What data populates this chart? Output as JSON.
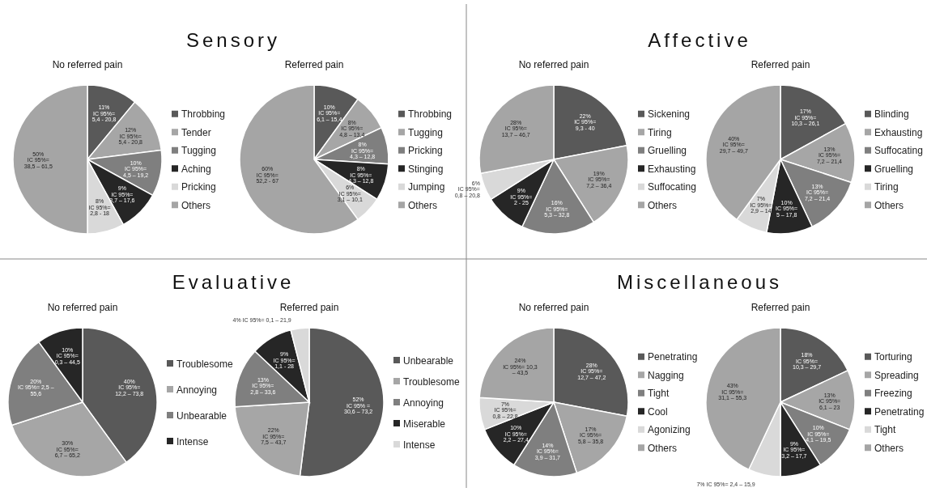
{
  "chart_data": [
    {
      "type": "pie",
      "title": "Sensory",
      "subtitle": "No referred pain",
      "legend": "right",
      "categories": [
        "Throbbing",
        "Tender",
        "Tugging",
        "Aching",
        "Pricking",
        "Others"
      ],
      "values": [
        11,
        12,
        10,
        9,
        8,
        50
      ],
      "colors": [
        "#595959",
        "#a6a6a6",
        "#7f7f7f",
        "#262626",
        "#d9d9d9",
        "#a5a5a5"
      ],
      "value_labels": [
        "11%\nIC 95%=\n5,4 - 20,8",
        "12%\nIC 95%=\n5,4 - 20,8",
        "10%\nIC 95%=\n4,5 – 19,2",
        "9%\nIC 95%=\n3,7 – 17,6",
        "8%\nIC 95%=\n2,8 - 18",
        "50%\nIC 95%=\n38,5 – 61,5"
      ]
    },
    {
      "type": "pie",
      "subtitle": "Referred pain",
      "legend": "right",
      "categories": [
        "Throbbing",
        "Tugging",
        "Pricking",
        "Stinging",
        "Jumping",
        "Others"
      ],
      "values": [
        10,
        8,
        8,
        8,
        6,
        60
      ],
      "colors": [
        "#595959",
        "#a6a6a6",
        "#7f7f7f",
        "#262626",
        "#d9d9d9",
        "#a5a5a5"
      ],
      "value_labels": [
        "10%\nIC 95%=\n6,1 – 15,4",
        "8%\nIC 95%=\n4,8 – 13,4",
        "8%\nIC 95%=\n4,3 – 12,8",
        "8%\nIC 95%=\n4,3 – 12,8",
        "6%\nIC 95%=\n3,1 – 10,1",
        "60%\nIC 95%=\n52,2 - 67"
      ]
    },
    {
      "type": "pie",
      "title": "Affective",
      "subtitle": "No referred pain",
      "legend": "right",
      "categories": [
        "Sickening",
        "Tiring",
        "Gruelling",
        "Exhausting",
        "Suffocating",
        "Others"
      ],
      "values": [
        22,
        19,
        16,
        9,
        6,
        28
      ],
      "colors": [
        "#595959",
        "#a6a6a6",
        "#7f7f7f",
        "#262626",
        "#d9d9d9",
        "#a5a5a5"
      ],
      "value_labels": [
        "22%\nIC 95%=\n9,3 - 40",
        "19%\nIC 95%=\n7,2 – 36,4",
        "16%\nIC 95%=\n5,3 – 32,8",
        "9%\nIC 95%=\n2 - 25",
        "6%\nIC 95%=\n0,8 – 20,8",
        "28%\nIC 95%=\n13,7 – 46,7"
      ]
    },
    {
      "type": "pie",
      "subtitle": "Referred pain",
      "legend": "right",
      "categories": [
        "Blinding",
        "Exhausting",
        "Suffocating",
        "Gruelling",
        "Tiring",
        "Others"
      ],
      "values": [
        17,
        13,
        13,
        10,
        7,
        40
      ],
      "colors": [
        "#595959",
        "#a6a6a6",
        "#7f7f7f",
        "#262626",
        "#d9d9d9",
        "#a5a5a5"
      ],
      "value_labels": [
        "17%\nIC 95%=\n10,3 – 26,1",
        "13%\nIC 95%=\n7,2 – 21,4",
        "13%\nIC 95%=\n7,2 – 21,4",
        "10%\nIC 95%=\n5 – 17,8",
        "7%\nIC 95%=\n2,9 – 14",
        "40%\nIC 95%=\n29,7 – 49,7"
      ]
    },
    {
      "type": "pie",
      "title": "Evaluative",
      "subtitle": "No referred pain",
      "legend": "right",
      "categories": [
        "Troublesome",
        "Annoying",
        "Unbearable",
        "Intense"
      ],
      "values": [
        40,
        30,
        20,
        10
      ],
      "colors": [
        "#595959",
        "#a6a6a6",
        "#7f7f7f",
        "#262626"
      ],
      "value_labels": [
        "40%\nIC 95%=\n12,2 – 73,8",
        "30%\nIC 95%=\n6,7 – 65,2",
        "20%\nIC 95%= 2,5 –\n55,6",
        "10%\nIC 95%=\n0,3 – 44,5"
      ]
    },
    {
      "type": "pie",
      "subtitle": "Referred pain",
      "legend": "right",
      "categories": [
        "Unbearable",
        "Troublesome",
        "Annoying",
        "Miserable",
        "Intense"
      ],
      "values": [
        52,
        22,
        13,
        9,
        4
      ],
      "colors": [
        "#595959",
        "#a6a6a6",
        "#7f7f7f",
        "#262626",
        "#d9d9d9"
      ],
      "value_labels": [
        "52%\nIC 95% =\n30,6 – 73,2",
        "22%\nIC 95%=\n7,5 – 43,7",
        "13%\nIC 95%=\n2,8 – 33,6",
        "9%\nIC 95%=\n1,1 - 28",
        "4%\nIC\n95%=\n0,1 –\n21,9"
      ]
    },
    {
      "type": "pie",
      "title": "Miscellaneous",
      "subtitle": "No referred pain",
      "legend": "right",
      "categories": [
        "Penetrating",
        "Nagging",
        "Tight",
        "Cool",
        "Agonizing",
        "Others"
      ],
      "values": [
        28,
        17,
        14,
        10,
        7,
        24
      ],
      "colors": [
        "#595959",
        "#a6a6a6",
        "#7f7f7f",
        "#262626",
        "#d9d9d9",
        "#a5a5a5"
      ],
      "value_labels": [
        "28%\nIC 95%=\n12,7 – 47,2",
        "17%\nIC 95%=\n5,8 – 35,8",
        "14%\nIC 95%=\n3,9 – 31,7",
        "10%\nIC 95%=\n2,2 – 27,4",
        "7%\nIC 95%=\n0,8 – 22,8",
        "24%\nIC 95%= 10,3\n– 43,5"
      ]
    },
    {
      "type": "pie",
      "subtitle": "Referred pain",
      "legend": "right",
      "categories": [
        "Torturing",
        "Spreading",
        "Freezing",
        "Penetrating",
        "Tight",
        "Others"
      ],
      "values": [
        18,
        13,
        10,
        9,
        7,
        43
      ],
      "colors": [
        "#595959",
        "#a6a6a6",
        "#7f7f7f",
        "#262626",
        "#d9d9d9",
        "#a5a5a5"
      ],
      "value_labels": [
        "18%\nIC 95%=\n10,3 – 29,7",
        "13%\nIC 95%=\n6,1 – 23",
        "10%\nIC 95%=\n4,1 – 19,5",
        "9%\nIC 95%=\n3,2 – 17,7",
        "7%\nIC 95%=\n2,4 – 15,9",
        "43%\nIC 95%=\n31,1 – 55,3"
      ]
    }
  ]
}
